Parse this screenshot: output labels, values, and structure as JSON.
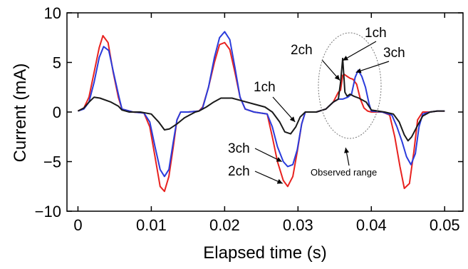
{
  "chart_data": {
    "type": "line",
    "title": "",
    "xlabel": "Elapsed time (s)",
    "ylabel": "Current (mA)",
    "xlim": [
      -0.0015,
      0.0525
    ],
    "ylim": [
      -10,
      10
    ],
    "x_ticks": [
      0,
      0.01,
      0.02,
      0.03,
      0.04,
      0.05
    ],
    "x_tick_labels": [
      "0",
      "0.01",
      "0.02",
      "0.03",
      "0.04",
      "0.05"
    ],
    "y_ticks": [
      -10,
      -5,
      0,
      5,
      10
    ],
    "y_tick_labels": [
      "−10",
      "−5",
      "0",
      "5",
      "10"
    ],
    "grid": false,
    "series": [
      {
        "name": "2ch",
        "color": "#e8221f",
        "x": [
          0,
          0.0008,
          0.0015,
          0.0022,
          0.0029,
          0.0034,
          0.0041,
          0.0048,
          0.0055,
          0.006,
          0.0075,
          0.009,
          0.0098,
          0.0105,
          0.0112,
          0.0118,
          0.0124,
          0.013,
          0.0135,
          0.014,
          0.015,
          0.0165,
          0.017,
          0.0178,
          0.0186,
          0.0193,
          0.02,
          0.0207,
          0.0214,
          0.0221,
          0.0228,
          0.024,
          0.0258,
          0.0265,
          0.0272,
          0.028,
          0.0286,
          0.0293,
          0.0299,
          0.0305,
          0.031,
          0.0325,
          0.0338,
          0.0348,
          0.0355,
          0.0358,
          0.0361,
          0.0363,
          0.0367,
          0.0371,
          0.0375,
          0.038,
          0.0385,
          0.039,
          0.0395,
          0.04,
          0.0415,
          0.0425,
          0.0432,
          0.0439,
          0.0445,
          0.0452,
          0.0458,
          0.0463,
          0.047,
          0.048,
          0.049,
          0.05
        ],
        "y": [
          0.1,
          0.4,
          1.5,
          4.0,
          6.5,
          7.7,
          7.0,
          4.0,
          1.5,
          0.3,
          0.0,
          -0.1,
          -1.5,
          -4.5,
          -7.5,
          -8.0,
          -6.5,
          -3.5,
          -0.8,
          0.0,
          0.0,
          0.1,
          0.5,
          2.5,
          5.0,
          6.8,
          7.0,
          6.3,
          4.0,
          1.5,
          0.3,
          0.0,
          -0.2,
          -2.5,
          -5.0,
          -6.9,
          -7.5,
          -6.5,
          -4.0,
          -1.2,
          0.0,
          0.0,
          0.3,
          1.0,
          2.0,
          2.2,
          3.7,
          3.8,
          3.6,
          3.4,
          3.3,
          2.8,
          1.3,
          0.4,
          0.1,
          0.0,
          0.0,
          -0.3,
          -2.5,
          -5.5,
          -7.7,
          -7.2,
          -4.0,
          -0.8,
          0.0,
          0.0,
          0.1,
          0.1
        ]
      },
      {
        "name": "3ch",
        "color": "#2a3cdc",
        "x": [
          0,
          0.0008,
          0.0015,
          0.0022,
          0.0029,
          0.0035,
          0.0042,
          0.0049,
          0.0056,
          0.006,
          0.0075,
          0.009,
          0.0098,
          0.0105,
          0.0112,
          0.0118,
          0.0124,
          0.013,
          0.0135,
          0.014,
          0.015,
          0.0165,
          0.017,
          0.0178,
          0.0186,
          0.0193,
          0.02,
          0.0207,
          0.0214,
          0.0221,
          0.0228,
          0.024,
          0.0258,
          0.0265,
          0.0272,
          0.028,
          0.0286,
          0.0293,
          0.0299,
          0.0305,
          0.031,
          0.0325,
          0.0338,
          0.0348,
          0.0355,
          0.0361,
          0.0368,
          0.0373,
          0.0378,
          0.0382,
          0.0387,
          0.0392,
          0.0397,
          0.04,
          0.0415,
          0.0428,
          0.0435,
          0.0442,
          0.0448,
          0.0454,
          0.046,
          0.0465,
          0.047,
          0.048,
          0.049,
          0.05
        ],
        "y": [
          0.1,
          0.3,
          1.0,
          3.0,
          5.5,
          6.6,
          6.2,
          3.8,
          1.5,
          0.3,
          0.0,
          -0.1,
          -1.0,
          -3.5,
          -5.8,
          -6.5,
          -5.8,
          -3.0,
          -0.8,
          0.0,
          0.0,
          0.1,
          0.4,
          2.5,
          5.5,
          7.5,
          8.1,
          7.3,
          4.5,
          1.5,
          0.3,
          0.0,
          -0.2,
          -1.5,
          -3.5,
          -5.0,
          -5.5,
          -5.3,
          -3.8,
          -1.2,
          0.0,
          0.0,
          0.3,
          1.0,
          1.3,
          1.3,
          1.5,
          1.8,
          3.5,
          4.2,
          3.6,
          2.5,
          0.8,
          0.1,
          0.0,
          -0.3,
          -1.5,
          -3.0,
          -4.5,
          -5.3,
          -4.2,
          -1.5,
          -0.2,
          0.0,
          0.1,
          0.1
        ]
      },
      {
        "name": "1ch",
        "color": "#1a1a1a",
        "x": [
          0,
          0.0008,
          0.0015,
          0.0022,
          0.003,
          0.0045,
          0.0055,
          0.006,
          0.007,
          0.0085,
          0.01,
          0.011,
          0.0118,
          0.0125,
          0.0135,
          0.0145,
          0.0155,
          0.016,
          0.0165,
          0.0175,
          0.0185,
          0.0195,
          0.021,
          0.0225,
          0.024,
          0.0255,
          0.0265,
          0.0275,
          0.0282,
          0.029,
          0.0297,
          0.0303,
          0.031,
          0.0325,
          0.0338,
          0.0348,
          0.0355,
          0.0358,
          0.0361,
          0.0364,
          0.0367,
          0.0371,
          0.0376,
          0.0383,
          0.0393,
          0.04,
          0.0418,
          0.043,
          0.0438,
          0.0445,
          0.045,
          0.0455,
          0.0462,
          0.047,
          0.048,
          0.049,
          0.05
        ],
        "y": [
          0.1,
          0.4,
          1.0,
          1.5,
          1.4,
          1.0,
          0.6,
          0.2,
          0.0,
          0.0,
          -0.2,
          -1.0,
          -1.8,
          -1.7,
          -1.2,
          -0.6,
          -0.2,
          0.0,
          0.1,
          0.5,
          1.0,
          1.4,
          1.4,
          1.1,
          0.8,
          0.5,
          0.0,
          -1.0,
          -2.0,
          -2.2,
          -1.5,
          -0.5,
          0.0,
          0.0,
          0.3,
          1.0,
          1.3,
          3.0,
          5.4,
          2.0,
          1.6,
          1.8,
          1.6,
          1.4,
          1.0,
          0.2,
          0.0,
          -0.2,
          -1.0,
          -2.3,
          -2.9,
          -2.5,
          -1.5,
          -0.4,
          0.0,
          0.1,
          0.1
        ]
      }
    ],
    "annotations": [
      {
        "text": "1ch",
        "target": [
          0.0296,
          -1.0
        ]
      },
      {
        "text": "3ch",
        "target": [
          0.0278,
          -5.0
        ]
      },
      {
        "text": "2ch",
        "target": [
          0.0279,
          -7.2
        ]
      },
      {
        "text": "2ch",
        "target": [
          0.0357,
          3.2
        ]
      },
      {
        "text": "1ch",
        "target": [
          0.0361,
          5.2
        ]
      },
      {
        "text": "3ch",
        "target": [
          0.0379,
          4.0
        ]
      },
      {
        "text": "Observed range",
        "target": [
          0.0365,
          -3.6
        ]
      }
    ]
  }
}
